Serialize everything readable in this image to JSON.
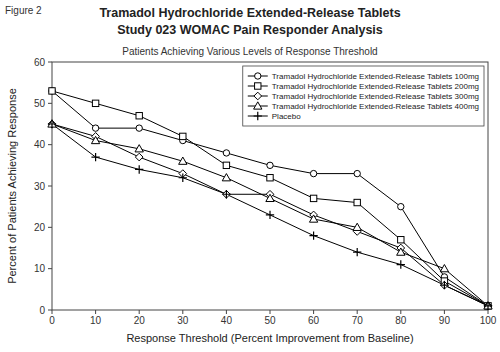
{
  "chart_data": {
    "type": "line",
    "title": [
      "Tramadol Hydrochloride Extended-Release Tablets",
      "Study 023 WOMAC Pain Responder Analysis"
    ],
    "subtitle": "Patients Achieving Various Levels of Response Threshold",
    "annotations": [
      "Figure 2"
    ],
    "x_label": "Response Threshold (Percent Improvement from Baseline)",
    "y_label": "Percent of Patients Achieving Response",
    "x": [
      0,
      10,
      20,
      30,
      40,
      50,
      60,
      70,
      80,
      90,
      100
    ],
    "series": [
      {
        "name": "Tramadol Hydrochloride Extended-Release Tablets 100mg",
        "color": "black",
        "marker": "circle",
        "values": [
          53,
          44,
          44,
          41,
          38,
          35,
          33,
          33,
          25,
          8,
          1
        ]
      },
      {
        "name": "Tramadol Hydrochloride Extended-Release Tablets 200mg",
        "color": "black",
        "marker": "square",
        "values": [
          53,
          50,
          47,
          42,
          35,
          32,
          27,
          26,
          17,
          7,
          1
        ]
      },
      {
        "name": "Tramadol Hydrochloride Extended-Release Tablets 300mg",
        "color": "black",
        "marker": "diamond",
        "values": [
          45,
          42,
          37,
          33,
          28,
          28,
          23,
          19,
          15,
          6,
          1
        ]
      },
      {
        "name": "Tramadol Hydrochloride Extended-Release Tablets 400mg",
        "color": "black",
        "marker": "triangle",
        "values": [
          45,
          41,
          39,
          36,
          32,
          27,
          22,
          20,
          14,
          10,
          1
        ]
      },
      {
        "name": "Placebo",
        "color": "black",
        "marker": "plus",
        "values": [
          45,
          37,
          34,
          32,
          28,
          23,
          18,
          14,
          11,
          6,
          1
        ]
      }
    ],
    "xlim": [
      0,
      100
    ],
    "xticks": [
      0,
      10,
      20,
      30,
      40,
      50,
      60,
      70,
      80,
      90,
      100
    ],
    "ylim": [
      0,
      60
    ],
    "yticks": [
      0,
      10,
      20,
      30,
      40,
      50,
      60
    ],
    "grid": false,
    "legend": "upper right"
  }
}
